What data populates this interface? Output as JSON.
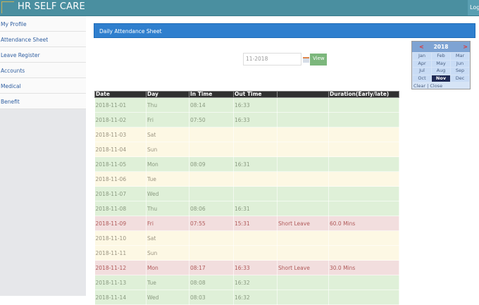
{
  "header": {
    "title": "HR SELF CARE",
    "logout_label": "Logout"
  },
  "sidebar": {
    "items": [
      {
        "label": "My Profile"
      },
      {
        "label": "Attendance Sheet"
      },
      {
        "label": "Leave Register"
      },
      {
        "label": "Accounts"
      },
      {
        "label": "Medical"
      },
      {
        "label": "Benefit"
      }
    ]
  },
  "main": {
    "title": "Daily Attendance Sheet",
    "month_value": "11-2018",
    "view_label": "View"
  },
  "picker": {
    "year": "2018",
    "prev": "<",
    "next": ">",
    "months": [
      "Jan",
      "Feb",
      "Mar",
      "Apr",
      "May",
      "Jun",
      "Jul",
      "Aug",
      "Sep",
      "Oct",
      "Nov",
      "Dec"
    ],
    "selected": "Nov",
    "clear": "Clear",
    "sep": "|",
    "close": "Close"
  },
  "table": {
    "headers": [
      "Date",
      "Day",
      "In Time",
      "Out Time",
      "",
      "Duration(Early/late)"
    ],
    "rows": [
      {
        "status": "present",
        "cells": [
          "2018-11-01",
          "Thu",
          "08:14",
          "16:33",
          "",
          ""
        ]
      },
      {
        "status": "present",
        "cells": [
          "2018-11-02",
          "Fri",
          "07:50",
          "16:33",
          "",
          ""
        ]
      },
      {
        "status": "weekend",
        "cells": [
          "2018-11-03",
          "Sat",
          "",
          "",
          "",
          ""
        ]
      },
      {
        "status": "weekend",
        "cells": [
          "2018-11-04",
          "Sun",
          "",
          "",
          "",
          ""
        ]
      },
      {
        "status": "present",
        "cells": [
          "2018-11-05",
          "Mon",
          "08:09",
          "16:31",
          "",
          ""
        ]
      },
      {
        "status": "weekend",
        "cells": [
          "2018-11-06",
          "Tue",
          "",
          "",
          "",
          ""
        ]
      },
      {
        "status": "present",
        "cells": [
          "2018-11-07",
          "Wed",
          "",
          "",
          "",
          ""
        ]
      },
      {
        "status": "present",
        "cells": [
          "2018-11-08",
          "Thu",
          "08:06",
          "16:31",
          "",
          ""
        ]
      },
      {
        "status": "late",
        "cells": [
          "2018-11-09",
          "Fri",
          "07:55",
          "15:31",
          "Short Leave",
          "60.0 Mins"
        ]
      },
      {
        "status": "weekend",
        "cells": [
          "2018-11-10",
          "Sat",
          "",
          "",
          "",
          ""
        ]
      },
      {
        "status": "weekend",
        "cells": [
          "2018-11-11",
          "Sun",
          "",
          "",
          "",
          ""
        ]
      },
      {
        "status": "late",
        "cells": [
          "2018-11-12",
          "Mon",
          "08:17",
          "16:33",
          "Short Leave",
          "30.0 Mins"
        ]
      },
      {
        "status": "present",
        "cells": [
          "2018-11-13",
          "Tue",
          "08:08",
          "16:32",
          "",
          ""
        ]
      },
      {
        "status": "present",
        "cells": [
          "2018-11-14",
          "Wed",
          "08:03",
          "16:32",
          "",
          ""
        ]
      }
    ]
  },
  "colors": {
    "topbar": "#4a8fa0",
    "banner": "#2f7fce",
    "present": "#dff0d8",
    "weekend": "#fdf8e4",
    "late": "#f2dede"
  }
}
